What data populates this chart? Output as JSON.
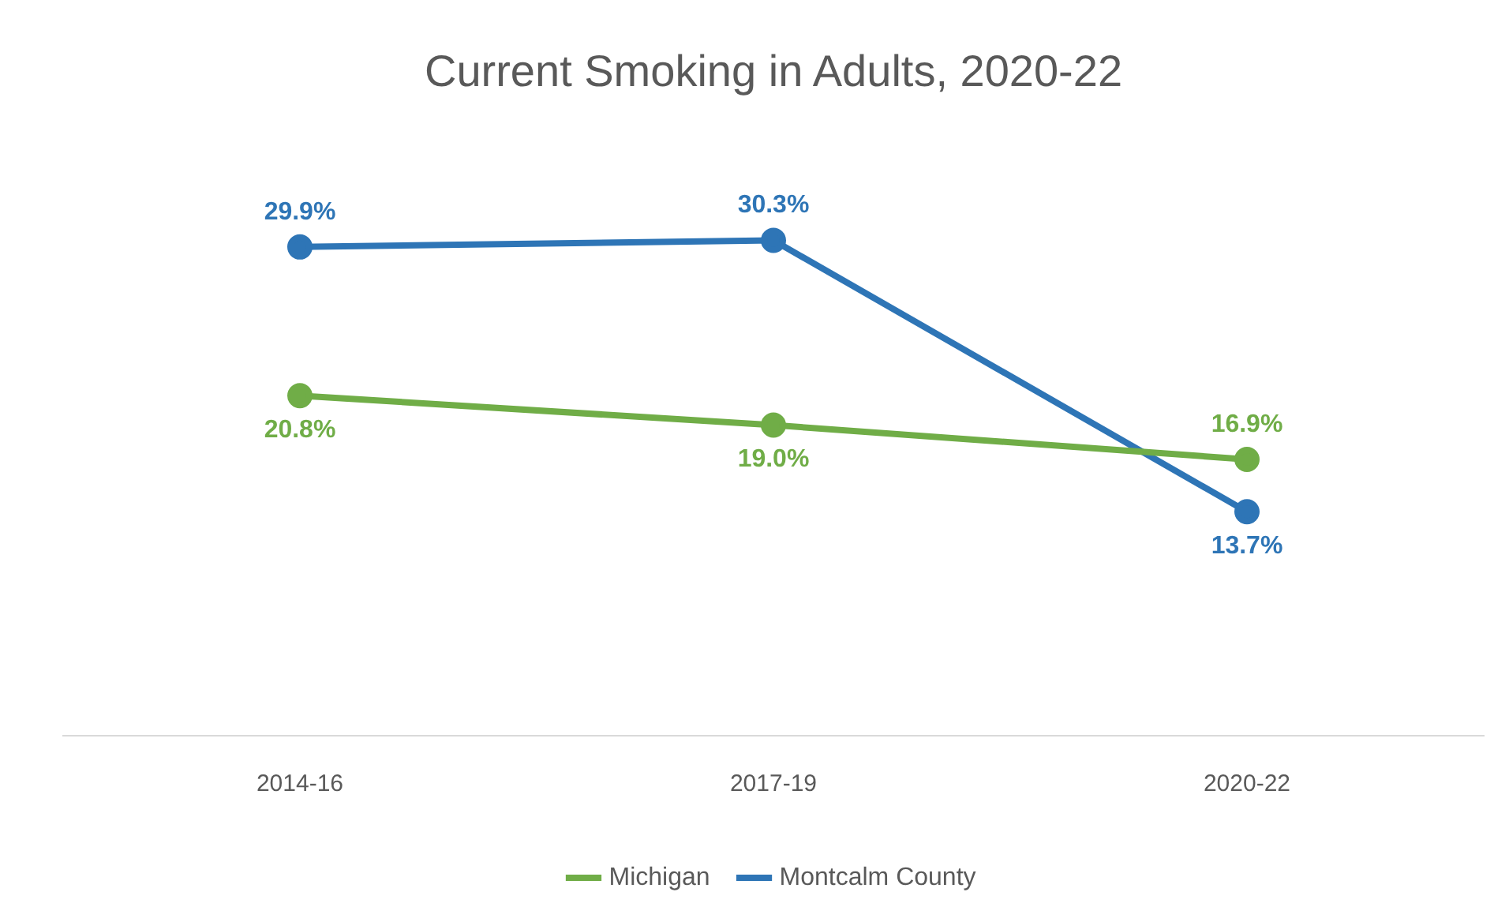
{
  "chart_data": {
    "type": "line",
    "title": "Current Smoking in Adults, 2020-22",
    "categories": [
      "2014-16",
      "2017-19",
      "2020-22"
    ],
    "series": [
      {
        "name": "Michigan",
        "color": "#70ad47",
        "values": [
          20.8,
          19.0,
          16.9
        ],
        "value_labels": [
          "20.8%",
          "19.0%",
          "16.9%"
        ]
      },
      {
        "name": "Montcalm County",
        "color": "#2e75b6",
        "values": [
          29.9,
          30.3,
          13.7
        ],
        "value_labels": [
          "29.9%",
          "30.3%",
          "13.7%"
        ]
      }
    ],
    "legend": "bottom",
    "marker": "circle",
    "line_style": "solid",
    "tick_labels": "x"
  }
}
